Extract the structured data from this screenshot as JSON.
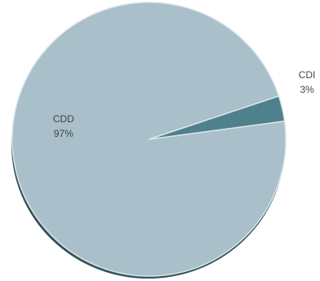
{
  "chart_data": {
    "type": "pie",
    "title": "",
    "slices": [
      {
        "label": "CDD",
        "pct_label": "97%",
        "value": 97,
        "color": "#a9bfca"
      },
      {
        "label": "CDI",
        "pct_label": "3%",
        "value": 3,
        "color": "#4e818c"
      }
    ],
    "shadow_color": "#32525c",
    "edge_color": "#dbe5ea"
  }
}
